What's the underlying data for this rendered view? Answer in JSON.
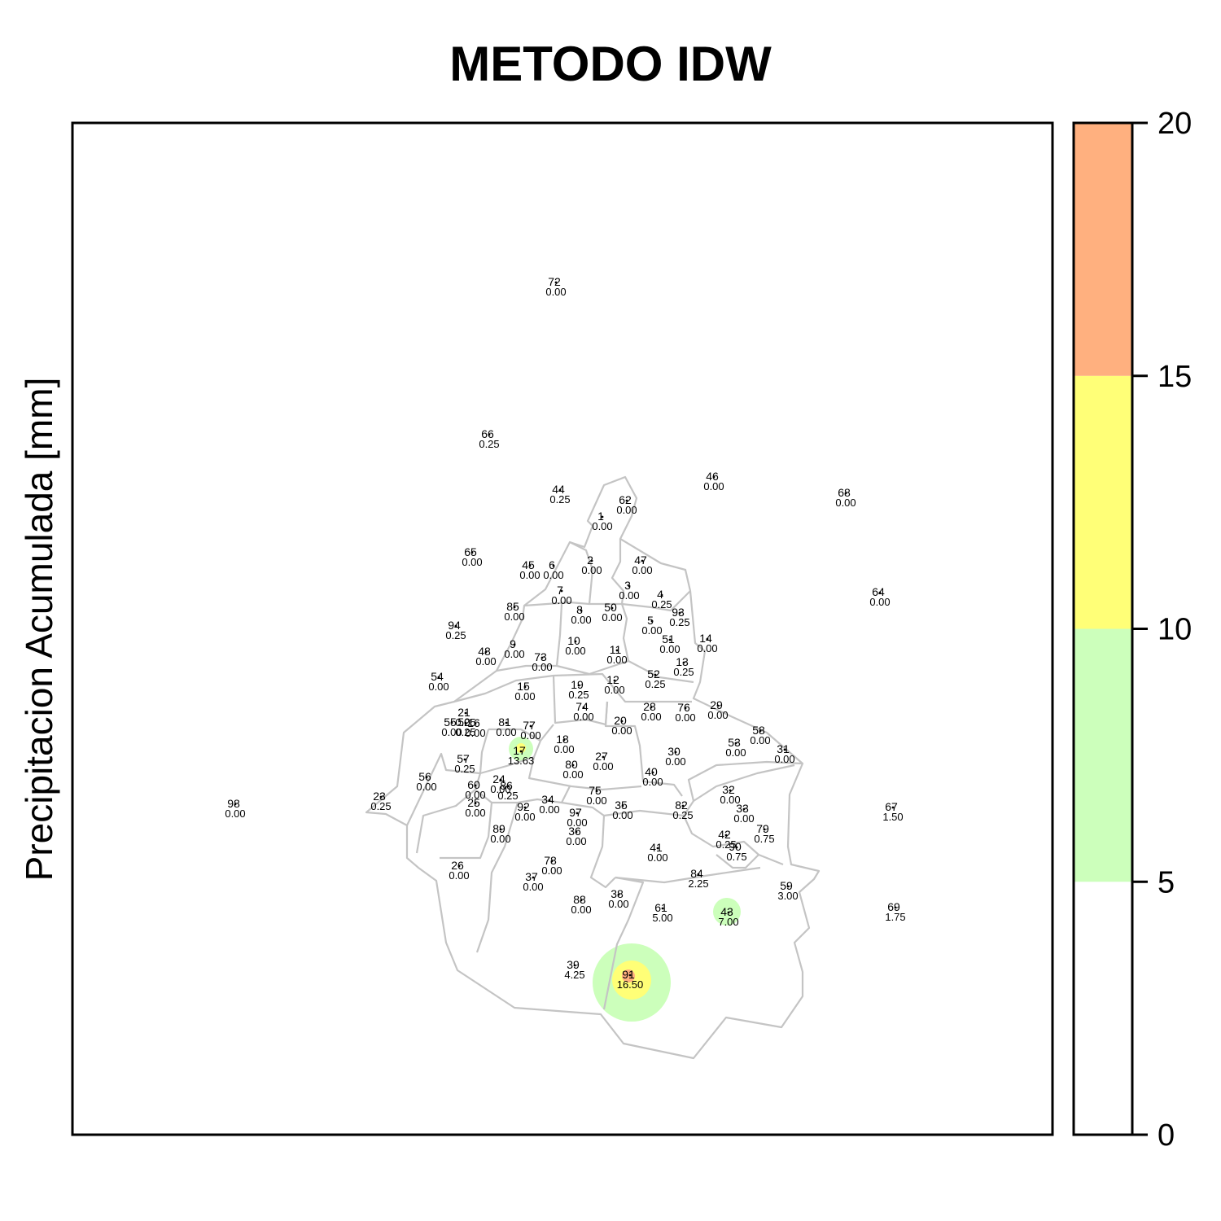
{
  "title": "METODO IDW",
  "ylabel": "Precipitacion Acumulada [mm]",
  "colors": {
    "frame": "#000000",
    "boundary": "#c4c4c4",
    "class_0_5": "#ffffff",
    "class_5_10": "#ccffbb",
    "class_10_15": "#ffff77",
    "class_15_20": "#ffb07f"
  },
  "legend": {
    "ticks": [
      "0",
      "5",
      "10",
      "15",
      "20"
    ],
    "classes": [
      {
        "from": 0,
        "to": 5,
        "color": "#ffffff"
      },
      {
        "from": 5,
        "to": 10,
        "color": "#ccffbb"
      },
      {
        "from": 10,
        "to": 15,
        "color": "#ffff77"
      },
      {
        "from": 15,
        "to": 20,
        "color": "#ffb07f"
      }
    ]
  },
  "stations": [
    {
      "id": "72",
      "value": "0.00"
    },
    {
      "id": "66",
      "value": "0.25"
    },
    {
      "id": "46",
      "value": "0.00"
    },
    {
      "id": "44",
      "value": "0.25"
    },
    {
      "id": "62",
      "value": "0.00"
    },
    {
      "id": "68",
      "value": "0.00"
    },
    {
      "id": "1",
      "value": "0.00"
    },
    {
      "id": "65",
      "value": "0.00"
    },
    {
      "id": "45",
      "value": "0.00"
    },
    {
      "id": "6",
      "value": "0.00"
    },
    {
      "id": "2",
      "value": "0.00"
    },
    {
      "id": "47",
      "value": "0.00"
    },
    {
      "id": "64",
      "value": "0.00"
    },
    {
      "id": "3",
      "value": "0.00"
    },
    {
      "id": "4",
      "value": "0.25"
    },
    {
      "id": "7",
      "value": "0.00"
    },
    {
      "id": "85",
      "value": "0.00"
    },
    {
      "id": "8",
      "value": "0.00"
    },
    {
      "id": "50",
      "value": "0.00"
    },
    {
      "id": "93",
      "value": "0.25"
    },
    {
      "id": "5",
      "value": "0.00"
    },
    {
      "id": "94",
      "value": "0.25"
    },
    {
      "id": "14",
      "value": "0.00"
    },
    {
      "id": "9",
      "value": "0.00"
    },
    {
      "id": "10",
      "value": "0.00"
    },
    {
      "id": "51",
      "value": "0.00"
    },
    {
      "id": "48",
      "value": "0.00"
    },
    {
      "id": "73",
      "value": "0.00"
    },
    {
      "id": "11",
      "value": "0.00"
    },
    {
      "id": "13",
      "value": "0.25"
    },
    {
      "id": "54",
      "value": "0.00"
    },
    {
      "id": "52",
      "value": "0.25"
    },
    {
      "id": "12",
      "value": "0.00"
    },
    {
      "id": "15",
      "value": "0.00"
    },
    {
      "id": "19",
      "value": "0.25"
    },
    {
      "id": "29",
      "value": "0.00"
    },
    {
      "id": "28",
      "value": "0.00"
    },
    {
      "id": "76",
      "value": "0.00"
    },
    {
      "id": "74",
      "value": "0.00"
    },
    {
      "id": "21",
      "value": "0.25"
    },
    {
      "id": "55",
      "value": "0.00"
    },
    {
      "id": "50",
      "value": "0.25"
    },
    {
      "id": "16",
      "value": "0.00"
    },
    {
      "id": "81",
      "value": "0.00"
    },
    {
      "id": "77",
      "value": "0.00"
    },
    {
      "id": "20",
      "value": "0.00"
    },
    {
      "id": "58",
      "value": "0.00"
    },
    {
      "id": "53",
      "value": "0.00"
    },
    {
      "id": "31",
      "value": "0.00"
    },
    {
      "id": "18",
      "value": "0.00"
    },
    {
      "id": "17",
      "value": "13.63"
    },
    {
      "id": "30",
      "value": "0.00"
    },
    {
      "id": "27",
      "value": "0.00"
    },
    {
      "id": "57",
      "value": "0.25"
    },
    {
      "id": "80",
      "value": "0.00"
    },
    {
      "id": "40",
      "value": "0.00"
    },
    {
      "id": "56",
      "value": "0.00"
    },
    {
      "id": "24",
      "value": "0.00"
    },
    {
      "id": "86",
      "value": "0.25"
    },
    {
      "id": "60",
      "value": "0.00"
    },
    {
      "id": "75",
      "value": "0.00"
    },
    {
      "id": "32",
      "value": "0.00"
    },
    {
      "id": "98",
      "value": "0.00"
    },
    {
      "id": "23",
      "value": "0.25"
    },
    {
      "id": "34",
      "value": "0.00"
    },
    {
      "id": "25",
      "value": "0.00"
    },
    {
      "id": "92",
      "value": "0.00"
    },
    {
      "id": "35",
      "value": "0.00"
    },
    {
      "id": "82",
      "value": "0.25"
    },
    {
      "id": "33",
      "value": "0.00"
    },
    {
      "id": "67",
      "value": "1.50"
    },
    {
      "id": "97",
      "value": "0.00"
    },
    {
      "id": "79",
      "value": "0.75"
    },
    {
      "id": "89",
      "value": "0.00"
    },
    {
      "id": "36",
      "value": "0.00"
    },
    {
      "id": "42",
      "value": "0.25"
    },
    {
      "id": "90",
      "value": "0.75"
    },
    {
      "id": "41",
      "value": "0.00"
    },
    {
      "id": "26",
      "value": "0.00"
    },
    {
      "id": "78",
      "value": "0.00"
    },
    {
      "id": "37",
      "value": "0.00"
    },
    {
      "id": "84",
      "value": "2.25"
    },
    {
      "id": "59",
      "value": "3.00"
    },
    {
      "id": "38",
      "value": "0.00"
    },
    {
      "id": "88",
      "value": "0.00"
    },
    {
      "id": "61",
      "value": "5.00"
    },
    {
      "id": "43",
      "value": "7.00"
    },
    {
      "id": "69",
      "value": "1.75"
    },
    {
      "id": "39",
      "value": "4.25"
    },
    {
      "id": "91",
      "value": "16.50"
    }
  ]
}
